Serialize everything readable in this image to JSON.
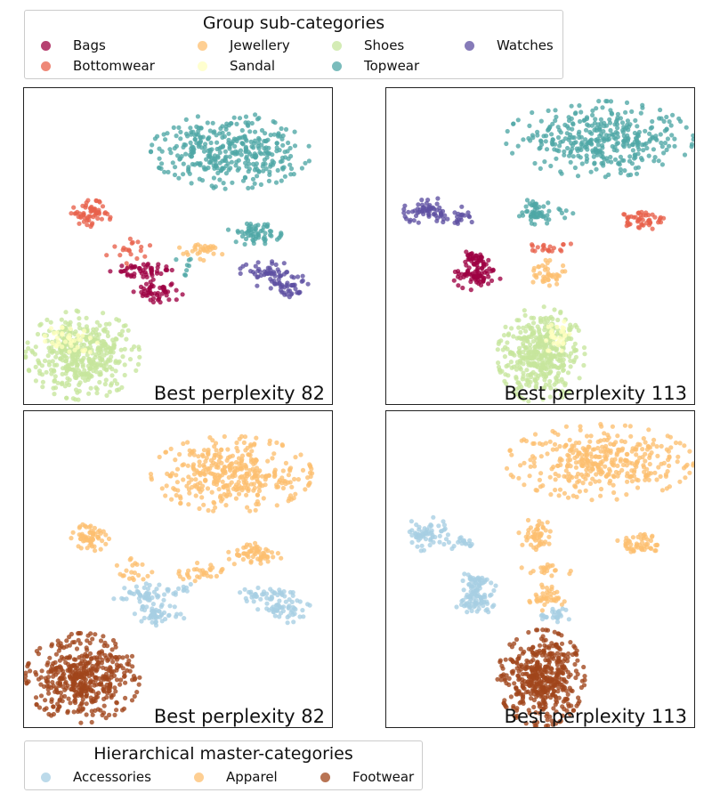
{
  "legend_top": {
    "title": "Group sub-categories",
    "entries": [
      {
        "label": "Bags",
        "color": "#9e0142"
      },
      {
        "label": "Bottomwear",
        "color": "#e8604a"
      },
      {
        "label": "Jewellery",
        "color": "#fdbf6f"
      },
      {
        "label": "Sandal",
        "color": "#ffffbf"
      },
      {
        "label": "Shoes",
        "color": "#c6e59c"
      },
      {
        "label": "Topwear",
        "color": "#4ea6a5"
      },
      {
        "label": "Watches",
        "color": "#5e4fa2"
      }
    ]
  },
  "legend_bottom": {
    "title": "Hierarchical master-categories",
    "entries": [
      {
        "label": "Accessories",
        "color": "#a6cee3"
      },
      {
        "label": "Apparel",
        "color": "#fdbf6f"
      },
      {
        "label": "Footwear",
        "color": "#a0451b"
      }
    ]
  },
  "chart_data": [
    {
      "type": "scatter",
      "label": "Best perplexity 82",
      "coloring": "Group sub-categories",
      "xlim": [
        0,
        100
      ],
      "ylim": [
        0,
        100
      ],
      "grid": false,
      "clusters": [
        {
          "category": "Topwear",
          "cx": 68,
          "cy": 82,
          "rx": 24,
          "ry": 11,
          "n": 360
        },
        {
          "category": "Topwear",
          "cx": 76,
          "cy": 55,
          "rx": 8,
          "ry": 4,
          "n": 60
        },
        {
          "category": "Topwear",
          "cx": 52,
          "cy": 44,
          "rx": 3,
          "ry": 3,
          "n": 8
        },
        {
          "category": "Bottomwear",
          "cx": 20,
          "cy": 61,
          "rx": 6,
          "ry": 4,
          "n": 60
        },
        {
          "category": "Bottomwear",
          "cx": 34,
          "cy": 49,
          "rx": 8,
          "ry": 5,
          "n": 20
        },
        {
          "category": "Jewellery",
          "cx": 58,
          "cy": 49,
          "rx": 7,
          "ry": 3,
          "n": 30
        },
        {
          "category": "Bags",
          "cx": 38,
          "cy": 42,
          "rx": 10,
          "ry": 3,
          "n": 50
        },
        {
          "category": "Bags",
          "cx": 43,
          "cy": 35,
          "rx": 8,
          "ry": 3,
          "n": 50
        },
        {
          "category": "Watches",
          "cx": 80,
          "cy": 42,
          "rx": 8,
          "ry": 3,
          "n": 40
        },
        {
          "category": "Watches",
          "cx": 86,
          "cy": 37,
          "rx": 8,
          "ry": 4,
          "n": 50
        },
        {
          "category": "Shoes",
          "cx": 17,
          "cy": 14,
          "rx": 17,
          "ry": 13,
          "n": 420
        },
        {
          "category": "Sandal",
          "cx": 13,
          "cy": 19,
          "rx": 8,
          "ry": 5,
          "n": 40
        }
      ]
    },
    {
      "type": "scatter",
      "label": "Best perplexity 113",
      "coloring": "Group sub-categories",
      "xlim": [
        0,
        100
      ],
      "ylim": [
        0,
        100
      ],
      "grid": false,
      "clusters": [
        {
          "category": "Topwear",
          "cx": 70,
          "cy": 86,
          "rx": 28,
          "ry": 11,
          "n": 360
        },
        {
          "category": "Topwear",
          "cx": 48,
          "cy": 62,
          "rx": 5,
          "ry": 5,
          "n": 50
        },
        {
          "category": "Topwear",
          "cx": 58,
          "cy": 62,
          "rx": 3,
          "ry": 2,
          "n": 6
        },
        {
          "category": "Watches",
          "cx": 11,
          "cy": 62,
          "rx": 7,
          "ry": 5,
          "n": 60
        },
        {
          "category": "Watches",
          "cx": 22,
          "cy": 60,
          "rx": 5,
          "ry": 3,
          "n": 20
        },
        {
          "category": "Bottomwear",
          "cx": 84,
          "cy": 59,
          "rx": 7,
          "ry": 3,
          "n": 50
        },
        {
          "category": "Bottomwear",
          "cx": 52,
          "cy": 50,
          "rx": 8,
          "ry": 2,
          "n": 20
        },
        {
          "category": "Bags",
          "cx": 28,
          "cy": 46,
          "rx": 6,
          "ry": 3,
          "n": 40
        },
        {
          "category": "Bags",
          "cx": 28,
          "cy": 40,
          "rx": 7,
          "ry": 4,
          "n": 70
        },
        {
          "category": "Jewellery",
          "cx": 52,
          "cy": 41,
          "rx": 6,
          "ry": 4,
          "n": 40
        },
        {
          "category": "Shoes",
          "cx": 50,
          "cy": 14,
          "rx": 13,
          "ry": 14,
          "n": 420
        },
        {
          "category": "Sandal",
          "cx": 54,
          "cy": 20,
          "rx": 8,
          "ry": 5,
          "n": 30
        }
      ]
    },
    {
      "type": "scatter",
      "label": "Best perplexity 82",
      "coloring": "Hierarchical master-categories",
      "xlim": [
        0,
        100
      ],
      "ylim": [
        0,
        100
      ],
      "grid": false,
      "clusters": [
        {
          "category": "Apparel",
          "cx": 68,
          "cy": 82,
          "rx": 24,
          "ry": 11,
          "n": 360
        },
        {
          "category": "Apparel",
          "cx": 76,
          "cy": 55,
          "rx": 8,
          "ry": 4,
          "n": 60
        },
        {
          "category": "Apparel",
          "cx": 20,
          "cy": 61,
          "rx": 6,
          "ry": 4,
          "n": 60
        },
        {
          "category": "Apparel",
          "cx": 34,
          "cy": 49,
          "rx": 8,
          "ry": 5,
          "n": 20
        },
        {
          "category": "Apparel",
          "cx": 58,
          "cy": 49,
          "rx": 7,
          "ry": 3,
          "n": 30
        },
        {
          "category": "Accessories",
          "cx": 52,
          "cy": 44,
          "rx": 3,
          "ry": 3,
          "n": 8
        },
        {
          "category": "Accessories",
          "cx": 38,
          "cy": 42,
          "rx": 10,
          "ry": 3,
          "n": 50
        },
        {
          "category": "Accessories",
          "cx": 43,
          "cy": 35,
          "rx": 8,
          "ry": 3,
          "n": 50
        },
        {
          "category": "Accessories",
          "cx": 80,
          "cy": 42,
          "rx": 8,
          "ry": 3,
          "n": 40
        },
        {
          "category": "Accessories",
          "cx": 86,
          "cy": 37,
          "rx": 8,
          "ry": 4,
          "n": 50
        },
        {
          "category": "Footwear",
          "cx": 17,
          "cy": 14,
          "rx": 17,
          "ry": 13,
          "n": 460
        }
      ]
    },
    {
      "type": "scatter",
      "label": "Best perplexity 113",
      "coloring": "Hierarchical master-categories",
      "xlim": [
        0,
        100
      ],
      "ylim": [
        0,
        100
      ],
      "grid": false,
      "clusters": [
        {
          "category": "Apparel",
          "cx": 70,
          "cy": 86,
          "rx": 28,
          "ry": 11,
          "n": 360
        },
        {
          "category": "Apparel",
          "cx": 48,
          "cy": 62,
          "rx": 5,
          "ry": 5,
          "n": 50
        },
        {
          "category": "Apparel",
          "cx": 84,
          "cy": 59,
          "rx": 7,
          "ry": 3,
          "n": 50
        },
        {
          "category": "Apparel",
          "cx": 52,
          "cy": 50,
          "rx": 8,
          "ry": 2,
          "n": 20
        },
        {
          "category": "Apparel",
          "cx": 52,
          "cy": 41,
          "rx": 6,
          "ry": 4,
          "n": 40
        },
        {
          "category": "Accessories",
          "cx": 11,
          "cy": 62,
          "rx": 7,
          "ry": 5,
          "n": 60
        },
        {
          "category": "Accessories",
          "cx": 22,
          "cy": 60,
          "rx": 5,
          "ry": 3,
          "n": 20
        },
        {
          "category": "Accessories",
          "cx": 28,
          "cy": 46,
          "rx": 6,
          "ry": 3,
          "n": 40
        },
        {
          "category": "Accessories",
          "cx": 28,
          "cy": 40,
          "rx": 7,
          "ry": 4,
          "n": 70
        },
        {
          "category": "Accessories",
          "cx": 55,
          "cy": 35,
          "rx": 5,
          "ry": 2,
          "n": 25
        },
        {
          "category": "Footwear",
          "cx": 50,
          "cy": 14,
          "rx": 13,
          "ry": 14,
          "n": 450
        }
      ]
    }
  ]
}
